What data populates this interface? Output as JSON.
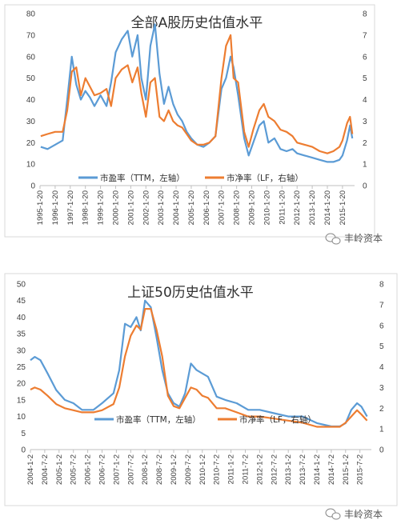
{
  "chart_data": [
    {
      "type": "line",
      "title": "全部A股历史估值水平",
      "ylim_left": [
        0,
        80
      ],
      "ylim_right": [
        0,
        8
      ],
      "left_ticks": [
        "0",
        "10",
        "20",
        "30",
        "40",
        "50",
        "60",
        "70",
        "80"
      ],
      "right_ticks": [
        "0",
        "1",
        "2",
        "3",
        "4",
        "5",
        "6",
        "7",
        "8"
      ],
      "x_labels": [
        "1995-1-20",
        "1996-1-20",
        "1997-1-20",
        "1998-1-20",
        "1999-1-20",
        "2000-1-20",
        "2001-1-20",
        "2002-1-20",
        "2003-1-20",
        "2004-1-20",
        "2005-1-20",
        "2006-1-20",
        "2007-1-20",
        "2008-1-20",
        "2009-1-20",
        "2010-1-20",
        "2011-1-20",
        "2012-1-20",
        "2013-1-20",
        "2014-1-20",
        "2015-1-20"
      ],
      "x": [
        1995.05,
        1995.5,
        1996.0,
        1996.5,
        1996.8,
        1997.1,
        1997.4,
        1997.7,
        1998.0,
        1998.3,
        1998.6,
        1999.0,
        1999.4,
        1999.7,
        2000.0,
        2000.4,
        2000.8,
        2001.1,
        2001.45,
        2001.7,
        2002.0,
        2002.3,
        2002.6,
        2002.9,
        2003.2,
        2003.5,
        2003.8,
        2004.1,
        2004.4,
        2004.7,
        2005.0,
        2005.4,
        2005.8,
        2006.2,
        2006.6,
        2007.0,
        2007.3,
        2007.6,
        2007.8,
        2008.1,
        2008.5,
        2008.8,
        2009.1,
        2009.5,
        2009.8,
        2010.1,
        2010.5,
        2010.9,
        2011.3,
        2011.7,
        2012.0,
        2012.5,
        2013.0,
        2013.5,
        2014.0,
        2014.4,
        2014.8,
        2015.0,
        2015.3,
        2015.5,
        2015.65
      ],
      "series": [
        {
          "name": "市盈率（TTM，左轴）",
          "axis": "left",
          "color": "#5b9bd5",
          "values": [
            18,
            17,
            19,
            21,
            40,
            60,
            47,
            40,
            44,
            41,
            37,
            42,
            37,
            48,
            62,
            68,
            72,
            60,
            70,
            50,
            40,
            65,
            75,
            52,
            38,
            46,
            38,
            33,
            30,
            25,
            22,
            19,
            18,
            20,
            23,
            45,
            50,
            60,
            55,
            42,
            22,
            14,
            20,
            28,
            30,
            20,
            22,
            17,
            16,
            17,
            15,
            14,
            13,
            12,
            11,
            11,
            12,
            14,
            21,
            28,
            22
          ]
        },
        {
          "name": "市净率（LF，右轴）",
          "axis": "right",
          "color": "#ed7d31",
          "values": [
            2.3,
            2.4,
            2.5,
            2.5,
            3.5,
            5.3,
            5.5,
            4.2,
            5.0,
            4.6,
            4.2,
            4.3,
            4.5,
            3.7,
            5.0,
            5.4,
            5.6,
            4.8,
            5.5,
            4.3,
            3.2,
            4.8,
            5.0,
            3.2,
            3.0,
            3.5,
            3.0,
            2.8,
            2.7,
            2.4,
            2.1,
            1.9,
            1.9,
            2.0,
            2.3,
            5.0,
            6.5,
            7.0,
            5.0,
            4.8,
            2.5,
            1.8,
            2.6,
            3.5,
            3.8,
            3.2,
            3.0,
            2.6,
            2.5,
            2.3,
            2.0,
            1.9,
            1.8,
            1.6,
            1.5,
            1.6,
            1.8,
            2.1,
            2.9,
            3.2,
            2.4
          ]
        }
      ]
    },
    {
      "type": "line",
      "title": "上证50历史估值水平",
      "ylim_left": [
        0,
        50
      ],
      "ylim_right": [
        0,
        8
      ],
      "left_ticks": [
        "0",
        "5",
        "10",
        "15",
        "20",
        "25",
        "30",
        "35",
        "40",
        "45",
        "50"
      ],
      "right_ticks": [
        "0",
        "1",
        "2",
        "3",
        "4",
        "5",
        "6",
        "7",
        "8"
      ],
      "x_labels": [
        "2004-1-2",
        "2004-7-2",
        "2005-1-2",
        "2005-7-2",
        "2006-1-2",
        "2006-7-2",
        "2007-1-2",
        "2007-7-2",
        "2008-1-2",
        "2008-7-2",
        "2009-1-2",
        "2009-7-2",
        "2010-1-2",
        "2010-7-2",
        "2011-1-2",
        "2011-7-2",
        "2012-1-2",
        "2012-7-2",
        "2013-1-2",
        "2013-7-2",
        "2014-1-2",
        "2014-7-2",
        "2015-1-2",
        "2015-7-2"
      ],
      "x": [
        2004.0,
        2004.15,
        2004.35,
        2004.6,
        2004.9,
        2005.2,
        2005.5,
        2005.8,
        2006.2,
        2006.5,
        2006.9,
        2007.1,
        2007.3,
        2007.5,
        2007.7,
        2007.85,
        2008.0,
        2008.2,
        2008.4,
        2008.6,
        2008.8,
        2009.0,
        2009.2,
        2009.4,
        2009.6,
        2009.8,
        2010.0,
        2010.2,
        2010.5,
        2010.8,
        2011.2,
        2011.6,
        2012.0,
        2012.5,
        2013.0,
        2013.5,
        2014.0,
        2014.5,
        2014.8,
        2015.0,
        2015.2,
        2015.4,
        2015.55,
        2015.75
      ],
      "series": [
        {
          "name": "市盈率（TTM，左轴）",
          "axis": "left",
          "color": "#5b9bd5",
          "values": [
            27,
            28,
            27,
            23,
            18,
            15,
            14,
            12,
            12,
            14,
            17,
            24,
            38,
            37,
            40,
            36,
            45,
            43,
            34,
            24,
            17,
            14,
            13,
            17,
            26,
            24,
            23,
            22,
            16,
            15,
            14,
            12,
            12,
            11,
            10,
            10,
            8,
            7,
            7,
            8,
            12,
            14,
            13,
            10
          ]
        },
        {
          "name": "市净率（LF，右轴）",
          "axis": "right",
          "color": "#ed7d31",
          "values": [
            2.9,
            3.0,
            2.9,
            2.6,
            2.2,
            2.0,
            1.9,
            1.8,
            1.8,
            1.9,
            2.2,
            3.0,
            4.5,
            5.5,
            6.0,
            5.8,
            6.8,
            6.8,
            5.8,
            4.5,
            2.6,
            2.1,
            2.0,
            2.5,
            3.0,
            2.9,
            2.6,
            2.5,
            2.0,
            2.0,
            1.8,
            1.6,
            1.6,
            1.5,
            1.4,
            1.3,
            1.1,
            1.1,
            1.1,
            1.3,
            1.6,
            1.9,
            1.7,
            1.4
          ]
        }
      ]
    }
  ],
  "watermark": "丰岭资本",
  "wechat_icon": "wechat-icon"
}
